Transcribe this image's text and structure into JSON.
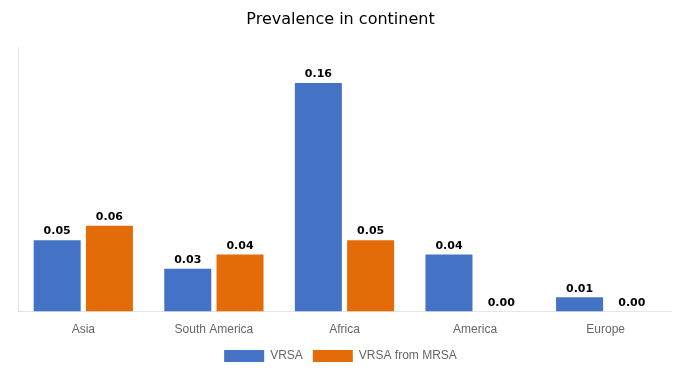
{
  "chart_data": {
    "type": "bar",
    "title": "Prevalence in continent",
    "categories": [
      "Asia",
      "South America",
      "Africa",
      "America",
      "Europe"
    ],
    "series": [
      {
        "name": "VRSA",
        "color": "#4472C4",
        "values": [
          0.05,
          0.03,
          0.16,
          0.04,
          0.01
        ],
        "value_labels": [
          "0.05",
          "0.03",
          "0.16",
          "0.04",
          "0.01"
        ]
      },
      {
        "name": "VRSA from MRSA",
        "color": "#E36C09",
        "values": [
          0.06,
          0.04,
          0.05,
          0.0,
          0.0
        ],
        "value_labels": [
          "0.06",
          "0.04",
          "0.05",
          "0.00",
          "0.00"
        ]
      }
    ],
    "ylim": [
      0,
      0.185
    ],
    "yticks": [],
    "grid": false,
    "legend": "bottom",
    "data_labels": true,
    "tick_labels": "x"
  }
}
